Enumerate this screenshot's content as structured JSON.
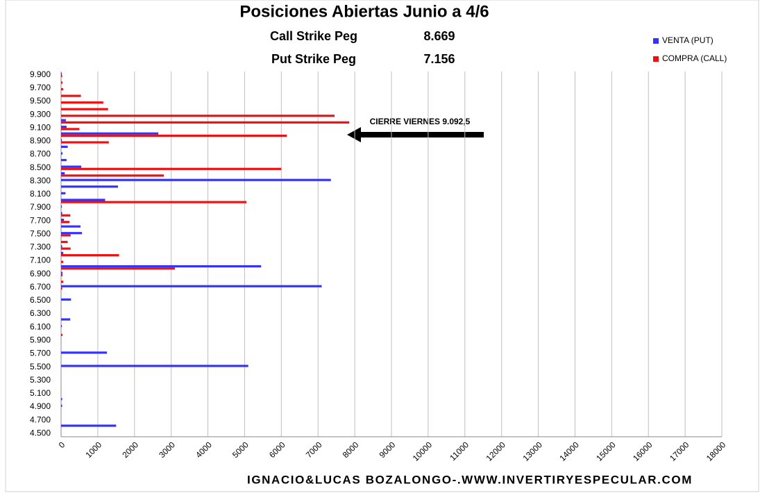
{
  "chart_data": {
    "type": "hbar",
    "title": "Posiciones Abiertas Junio a 4/6",
    "subtitle_rows": [
      [
        "Call Strike Peg",
        "8.669"
      ],
      [
        "Put Strike Peg",
        "7.156"
      ]
    ],
    "annotation": "CIERRE VIERNES 9.092,5",
    "footer": "IGNACIO&LUCAS BOZALONGO-.WWW.INVERTIRYESPECULAR.COM",
    "categories": [
      "4.500",
      null,
      "4.700",
      null,
      "4.900",
      null,
      "5.100",
      null,
      "5.300",
      null,
      "5.500",
      null,
      "5.700",
      null,
      "5.900",
      null,
      "6.100",
      null,
      "6.300",
      null,
      "6.500",
      null,
      "6.700",
      null,
      "6.900",
      null,
      "7.100",
      null,
      "7.300",
      null,
      "7.500",
      null,
      "7.700",
      null,
      "7.900",
      null,
      "8.100",
      null,
      "8.300",
      null,
      "8.500",
      null,
      "8.700",
      null,
      "8.900",
      null,
      "9.100",
      null,
      "9.300",
      null,
      "9.500",
      null,
      "9.700",
      null,
      "9.900"
    ],
    "series": [
      {
        "name": "VENTA (PUT)",
        "color": "#3333ff",
        "values": [
          0,
          1500,
          0,
          0,
          30,
          30,
          0,
          0,
          0,
          0,
          5100,
          0,
          1250,
          0,
          0,
          0,
          20,
          250,
          0,
          0,
          270,
          0,
          7100,
          0,
          40,
          5450,
          0,
          60,
          30,
          0,
          570,
          530,
          80,
          30,
          20,
          1200,
          120,
          1550,
          7350,
          100,
          550,
          150,
          40,
          180,
          20,
          2650,
          150,
          130,
          0,
          0,
          0,
          0,
          0,
          0,
          20
        ]
      },
      {
        "name": "COMPRA (CALL)",
        "color": "#ee1111",
        "values": [
          0,
          0,
          0,
          0,
          0,
          0,
          0,
          0,
          0,
          0,
          0,
          0,
          0,
          0,
          0,
          40,
          0,
          0,
          0,
          0,
          0,
          0,
          30,
          60,
          40,
          3100,
          60,
          1580,
          260,
          180,
          260,
          0,
          230,
          250,
          0,
          5050,
          0,
          0,
          0,
          2800,
          6000,
          0,
          0,
          0,
          1300,
          6150,
          500,
          7850,
          7450,
          1280,
          1150,
          540,
          60,
          40,
          30
        ]
      }
    ],
    "xlim": [
      0,
      18000
    ],
    "xticks": [
      0,
      1000,
      2000,
      3000,
      4000,
      5000,
      6000,
      7000,
      8000,
      9000,
      10000,
      11000,
      12000,
      13000,
      14000,
      15000,
      16000,
      17000,
      18000
    ],
    "grid": true,
    "legend": "top right"
  }
}
